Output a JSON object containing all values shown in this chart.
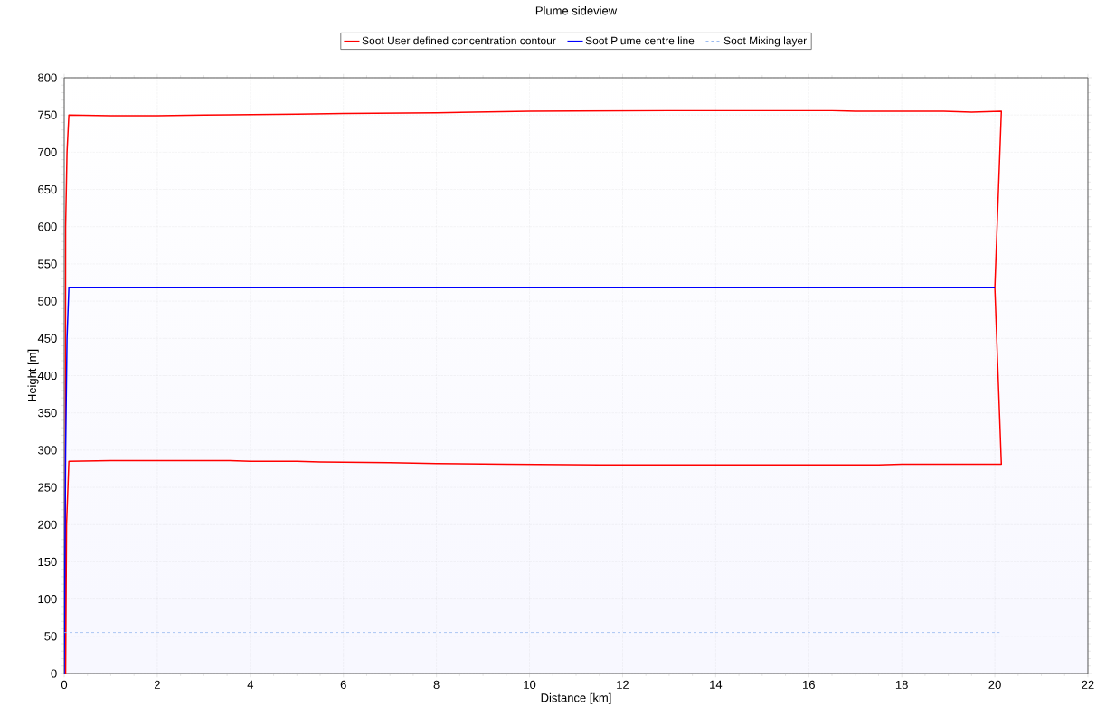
{
  "chart_data": {
    "type": "line",
    "title": "Plume sideview",
    "xlabel": "Distance [km]",
    "ylabel": "Height [m]",
    "xlim": [
      0,
      22
    ],
    "ylim": [
      0,
      800
    ],
    "xticks": [
      0,
      2,
      4,
      6,
      8,
      10,
      12,
      14,
      16,
      18,
      20,
      22
    ],
    "yticks": [
      0,
      50,
      100,
      150,
      200,
      250,
      300,
      350,
      400,
      450,
      500,
      550,
      600,
      650,
      700,
      750,
      800
    ],
    "grid": true,
    "legend": "top",
    "line_style": "solid",
    "series": [
      {
        "name": "Soot User defined concentration contour",
        "color": "#ff0000",
        "x": [
          0.03,
          0.05,
          0.1,
          1,
          3.5,
          4,
          5,
          5.5,
          7,
          8,
          9.5,
          11.5,
          17.5,
          18,
          19,
          20.14,
          20.0,
          20.14,
          19.5,
          18.9,
          17,
          16.5,
          13,
          10,
          8,
          6,
          5,
          3,
          2,
          1,
          0.1,
          0.06,
          0.03,
          0.02
        ],
        "values": [
          0,
          200,
          285,
          286,
          286,
          285,
          285,
          284,
          283,
          282,
          281,
          280,
          280,
          281,
          281,
          281,
          518,
          755,
          754,
          755,
          755,
          756,
          756,
          755,
          753,
          752,
          751,
          750,
          749,
          749,
          750,
          700,
          600,
          0
        ]
      },
      {
        "name": "Soot Plume centre line",
        "color": "#0000ff",
        "x": [
          0,
          0.01,
          0.03,
          0.06,
          0.1,
          20.0
        ],
        "values": [
          0,
          100,
          300,
          450,
          518,
          518
        ]
      },
      {
        "name": "Soot Mixing layer",
        "color": "#9bbbf0",
        "line_style": "dashed",
        "x": [
          0,
          20.1
        ],
        "values": [
          55,
          55
        ]
      }
    ]
  }
}
